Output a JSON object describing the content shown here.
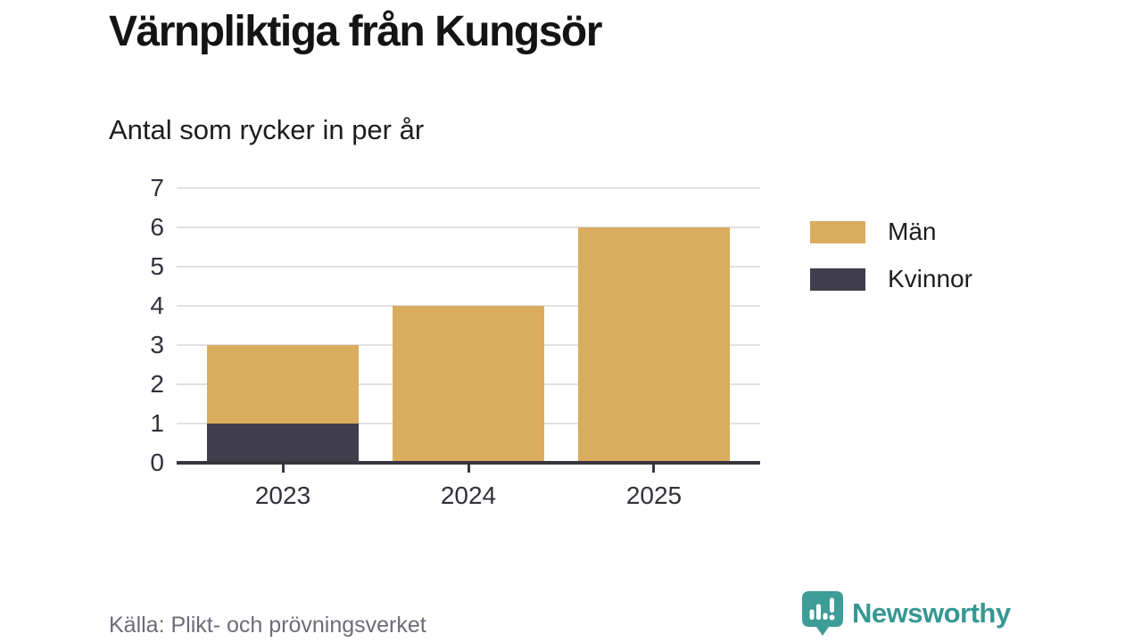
{
  "title": "Värnpliktiga från Kungsör",
  "subtitle": "Antal som rycker in per år",
  "chart_data": {
    "type": "bar",
    "stacked": true,
    "title": "Värnpliktiga från Kungsör",
    "subtitle": "Antal som rycker in per år",
    "categories": [
      "2023",
      "2024",
      "2025"
    ],
    "series": [
      {
        "name": "Män",
        "color": "#D9AC5E",
        "values": [
          2,
          4,
          6
        ]
      },
      {
        "name": "Kvinnor",
        "color": "#403D4D",
        "values": [
          1,
          0,
          0
        ]
      }
    ],
    "totals": [
      3,
      4,
      6
    ],
    "ylim": [
      0,
      7
    ],
    "yticks": [
      0,
      1,
      2,
      3,
      4,
      5,
      6,
      7
    ],
    "grid": true,
    "gridline_color": "#e1e1e1",
    "axis_color": "#38353f",
    "legend_position": "right"
  },
  "legend": {
    "items": [
      {
        "label": "Män",
        "color": "#D9AC5E"
      },
      {
        "label": "Kvinnor",
        "color": "#403D4D"
      }
    ]
  },
  "footer": {
    "source": "Källa: Plikt- och prövningsverket",
    "brand_name": "Newsworthy",
    "brand_color": "#359892"
  }
}
